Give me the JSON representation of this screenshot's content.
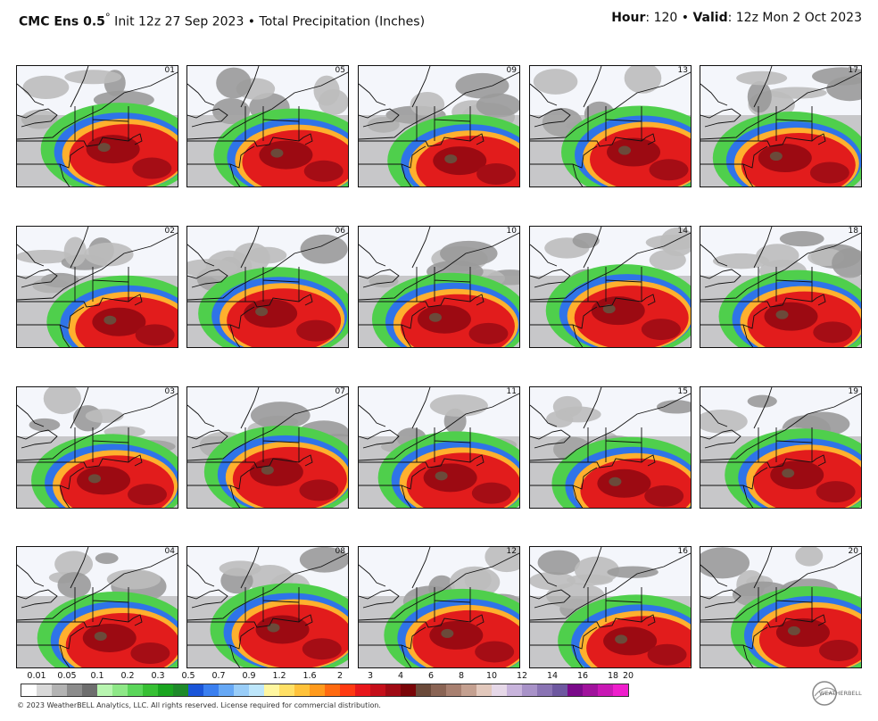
{
  "header": {
    "model": "CMC Ens 0.5",
    "degree": "°",
    "init": " Init 12z 27 Sep 2023 • Total Precipitation (Inches)",
    "hour_label": "Hour",
    "hour_value": ": 120 • ",
    "valid_label": "Valid",
    "valid_value": ": 12z Mon 2 Oct 2023"
  },
  "members": [
    [
      "01",
      "05",
      "09",
      "13",
      "17"
    ],
    [
      "02",
      "06",
      "10",
      "14",
      "18"
    ],
    [
      "03",
      "07",
      "11",
      "15",
      "19"
    ],
    [
      "04",
      "08",
      "12",
      "16",
      "20"
    ]
  ],
  "colorbar": {
    "colors": [
      "#ffffff",
      "#d9d9d9",
      "#b3b3b3",
      "#8c8c8c",
      "#6e6e6e",
      "#b8f5b0",
      "#8ee887",
      "#5bd65a",
      "#37c034",
      "#1aa520",
      "#1e8a2a",
      "#1a55d8",
      "#3a7ff0",
      "#66a8f5",
      "#99cdf8",
      "#bde6fb",
      "#fff7a0",
      "#ffe066",
      "#ffc23a",
      "#ff9a1c",
      "#ff6a10",
      "#ff3a12",
      "#e8171b",
      "#c50f1a",
      "#a00a14",
      "#7a0508",
      "#6b4a3a",
      "#8a6454",
      "#a88070",
      "#c4a090",
      "#e2c8bc",
      "#e6d8e8",
      "#c8b4dc",
      "#a892c8",
      "#8a74b4",
      "#6e58a0",
      "#7a0a8a",
      "#a0129c",
      "#c818b4",
      "#ef1ecc"
    ],
    "labels": [
      "0.01",
      "0.05",
      "0.1",
      "0.2",
      "0.3",
      "0.5",
      "0.7",
      "0.9",
      "1.2",
      "1.6",
      "2",
      "3",
      "4",
      "6",
      "8",
      "10",
      "12",
      "14",
      "16",
      "18",
      "20"
    ]
  },
  "footer": {
    "copyright": "© 2023 WeatherBELL Analytics, LLC. All rights reserved. License required for commercial distribution.",
    "logo_text": "WEATHERBELL"
  }
}
